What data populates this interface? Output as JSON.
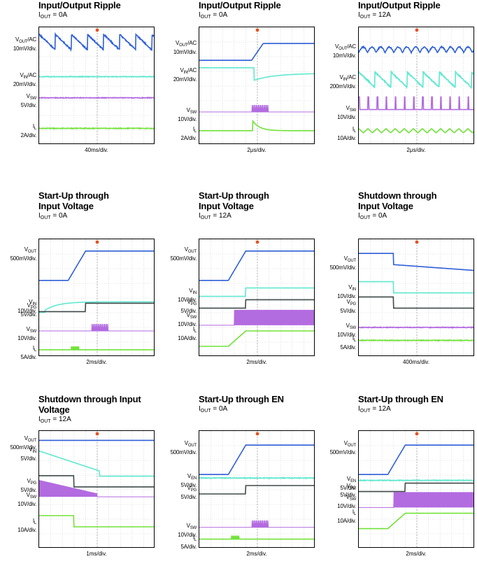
{
  "chart_data": [
    {
      "type": "line",
      "title": "Input/Output Ripple",
      "condition": {
        "prefix": "I",
        "sub": "OUT",
        "value": "= 0A"
      },
      "timebase": "40ms/div.",
      "channels": [
        {
          "sig": "V",
          "sub": "OUT",
          "suffix": "/AC",
          "scale": "10mV/div.",
          "color": "#2f5fd8",
          "waveform": "sawtooth-ripple",
          "level": 0.12
        },
        {
          "sig": "V",
          "sub": "IN",
          "suffix": "/AC",
          "scale": "20mV/div.",
          "color": "#5fe8cf",
          "waveform": "flat",
          "level": 0.42
        },
        {
          "sig": "V",
          "sub": "SW",
          "suffix": "",
          "scale": "5V/div.",
          "color": "#b36be0",
          "waveform": "flat",
          "level": 0.6
        },
        {
          "sig": "I",
          "sub": "L",
          "suffix": "",
          "scale": "2A/div.",
          "color": "#72e23a",
          "waveform": "flat",
          "level": 0.86
        }
      ]
    },
    {
      "type": "line",
      "title": "Input/Output Ripple",
      "condition": {
        "prefix": "I",
        "sub": "OUT",
        "value": "= 0A"
      },
      "timebase": "2μs/div.",
      "channels": [
        {
          "sig": "V",
          "sub": "OUT",
          "suffix": "/AC",
          "scale": "10mV/div.",
          "color": "#2f5fd8",
          "waveform": "step-up",
          "level": 0.15
        },
        {
          "sig": "V",
          "sub": "IN",
          "suffix": "/AC",
          "scale": "20mV/div.",
          "color": "#5fe8cf",
          "waveform": "dip-recover",
          "level": 0.38
        },
        {
          "sig": "V",
          "sub": "SW",
          "suffix": "",
          "scale": "10V/div.",
          "color": "#b36be0",
          "waveform": "burst",
          "level": 0.72
        },
        {
          "sig": "I",
          "sub": "L",
          "suffix": "",
          "scale": "2A/div.",
          "color": "#72e23a",
          "waveform": "pulse-decay",
          "level": 0.88
        }
      ]
    },
    {
      "type": "line",
      "title": "Input/Output Ripple",
      "condition": {
        "prefix": "I",
        "sub": "OUT",
        "value": "= 12A"
      },
      "timebase": "2μs/div.",
      "channels": [
        {
          "sig": "V",
          "sub": "OUT",
          "suffix": "/AC",
          "scale": "10mV/div.",
          "color": "#2f5fd8",
          "waveform": "scallop",
          "level": 0.18
        },
        {
          "sig": "V",
          "sub": "IN",
          "suffix": "/AC",
          "scale": "200mV/div.",
          "color": "#5fe8cf",
          "waveform": "sawtooth-ripple",
          "level": 0.44
        },
        {
          "sig": "V",
          "sub": "SW",
          "suffix": "",
          "scale": "10V/div.",
          "color": "#b36be0",
          "waveform": "spikes",
          "level": 0.7
        },
        {
          "sig": "I",
          "sub": "L",
          "suffix": "",
          "scale": "10A/div.",
          "color": "#72e23a",
          "waveform": "triangle",
          "level": 0.88
        }
      ]
    },
    {
      "type": "line",
      "title": "Start-Up through Input Voltage",
      "condition": {
        "prefix": "I",
        "sub": "OUT",
        "value": "= 0A"
      },
      "timebase": "2ms/div.",
      "channels": [
        {
          "sig": "V",
          "sub": "OUT",
          "suffix": "",
          "scale": "500mV/div.",
          "color": "#2f5fd8",
          "waveform": "ramp-up",
          "level": 0.1
        },
        {
          "sig": "V",
          "sub": "IN",
          "suffix": "",
          "scale": "10V/div.",
          "color": "#5fe8cf",
          "waveform": "rc-rise",
          "level": 0.55
        },
        {
          "sig": "V",
          "sub": "PG",
          "suffix": "",
          "scale": "5V/div.",
          "color": "#3f4a4a",
          "waveform": "step-high",
          "level": 0.58
        },
        {
          "sig": "V",
          "sub": "SW",
          "suffix": "",
          "scale": "10V/div.",
          "color": "#b36be0",
          "waveform": "burst",
          "level": 0.78
        },
        {
          "sig": "I",
          "sub": "L",
          "suffix": "",
          "scale": "5A/div.",
          "color": "#72e23a",
          "waveform": "small-burst",
          "level": 0.94
        }
      ]
    },
    {
      "type": "line",
      "title": "Start-Up through Input Voltage",
      "condition": {
        "prefix": "I",
        "sub": "OUT",
        "value": "= 12A"
      },
      "timebase": "2ms/div.",
      "channels": [
        {
          "sig": "V",
          "sub": "OUT",
          "suffix": "",
          "scale": "500mV/div.",
          "color": "#2f5fd8",
          "waveform": "ramp-up",
          "level": 0.1
        },
        {
          "sig": "V",
          "sub": "IN",
          "suffix": "",
          "scale": "10V/div.",
          "color": "#5fe8cf",
          "waveform": "step-high",
          "level": 0.45
        },
        {
          "sig": "V",
          "sub": "PG",
          "suffix": "",
          "scale": "5V/div.",
          "color": "#3f4a4a",
          "waveform": "step-high",
          "level": 0.55
        },
        {
          "sig": "V",
          "sub": "SW",
          "suffix": "",
          "scale": "10V/div.",
          "color": "#b36be0",
          "waveform": "dense-switch",
          "level": 0.66
        },
        {
          "sig": "I",
          "sub": "L",
          "suffix": "",
          "scale": "10A/div.",
          "color": "#72e23a",
          "waveform": "rise-hold",
          "level": 0.78
        }
      ]
    },
    {
      "type": "line",
      "title": "Shutdown through Input Voltage",
      "condition": {
        "prefix": "I",
        "sub": "OUT",
        "value": "= 0A"
      },
      "timebase": "400ms/div.",
      "channels": [
        {
          "sig": "V",
          "sub": "OUT",
          "suffix": "",
          "scale": "500mV/div.",
          "color": "#2f5fd8",
          "waveform": "step-down",
          "level": 0.18
        },
        {
          "sig": "V",
          "sub": "IN",
          "suffix": "",
          "scale": "10V/div.",
          "color": "#5fe8cf",
          "waveform": "step-down",
          "level": 0.42
        },
        {
          "sig": "V",
          "sub": "PG",
          "suffix": "",
          "scale": "5V/div.",
          "color": "#3f4a4a",
          "waveform": "step-down",
          "level": 0.55
        },
        {
          "sig": "V",
          "sub": "SW",
          "suffix": "",
          "scale": "10V/div.",
          "color": "#b36be0",
          "waveform": "flat",
          "level": 0.75
        },
        {
          "sig": "I",
          "sub": "L",
          "suffix": "",
          "scale": "5A/div.",
          "color": "#72e23a",
          "waveform": "flat",
          "level": 0.86
        }
      ]
    },
    {
      "type": "line",
      "title": "Shutdown through Input Voltage",
      "condition": {
        "prefix": "I",
        "sub": "OUT",
        "value": "= 12A"
      },
      "timebase": "1ms/div.",
      "channels": [
        {
          "sig": "V",
          "sub": "OUT",
          "suffix": "",
          "scale": "500mV/div.",
          "color": "#2f5fd8",
          "waveform": "flat-high",
          "level": 0.08
        },
        {
          "sig": "V",
          "sub": "IN",
          "suffix": "",
          "scale": "5V/div.",
          "color": "#5fe8cf",
          "waveform": "decay-step",
          "level": 0.17
        },
        {
          "sig": "V",
          "sub": "PG",
          "suffix": "",
          "scale": "5V/div.",
          "color": "#3f4a4a",
          "waveform": "step-down",
          "level": 0.44
        },
        {
          "sig": "V",
          "sub": "SW",
          "suffix": "",
          "scale": "10V/div.",
          "color": "#b36be0",
          "waveform": "decaying-switch",
          "level": 0.56
        },
        {
          "sig": "I",
          "sub": "L",
          "suffix": "",
          "scale": "10A/div.",
          "color": "#72e23a",
          "waveform": "step-down",
          "level": 0.78
        }
      ]
    },
    {
      "type": "line",
      "title": "Start-Up through EN",
      "condition": {
        "prefix": "I",
        "sub": "OUT",
        "value": "= 0A"
      },
      "timebase": "2ms/div.",
      "channels": [
        {
          "sig": "V",
          "sub": "OUT",
          "suffix": "",
          "scale": "500mV/div.",
          "color": "#2f5fd8",
          "waveform": "ramp-up",
          "level": 0.12
        },
        {
          "sig": "V",
          "sub": "EN",
          "suffix": "",
          "scale": "5V/div.",
          "color": "#5fe8cf",
          "waveform": "flat",
          "level": 0.4
        },
        {
          "sig": "V",
          "sub": "PG",
          "suffix": "",
          "scale": "5V/div.",
          "color": "#3f4a4a",
          "waveform": "step-high",
          "level": 0.5
        },
        {
          "sig": "V",
          "sub": "SW",
          "suffix": "",
          "scale": "10V/div.",
          "color": "#b36be0",
          "waveform": "burst",
          "level": 0.82
        },
        {
          "sig": "I",
          "sub": "L",
          "suffix": "",
          "scale": "5A/div.",
          "color": "#72e23a",
          "waveform": "small-burst",
          "level": 0.92
        }
      ]
    },
    {
      "type": "line",
      "title": "Start-Up through EN",
      "condition": {
        "prefix": "I",
        "sub": "OUT",
        "value": "= 12A"
      },
      "timebase": "2ms/div.",
      "channels": [
        {
          "sig": "V",
          "sub": "OUT",
          "suffix": "",
          "scale": "500mV/div.",
          "color": "#2f5fd8",
          "waveform": "ramp-up",
          "level": 0.12
        },
        {
          "sig": "V",
          "sub": "EN",
          "suffix": "",
          "scale": "5V/div.",
          "color": "#5fe8cf",
          "waveform": "flat",
          "level": 0.42
        },
        {
          "sig": "V",
          "sub": "PG",
          "suffix": "",
          "scale": "5V/div.",
          "color": "#3f4a4a",
          "waveform": "step-high",
          "level": 0.48
        },
        {
          "sig": "V",
          "sub": "SW",
          "suffix": "",
          "scale": "10V/div.",
          "color": "#b36be0",
          "waveform": "dense-switch",
          "level": 0.58
        },
        {
          "sig": "I",
          "sub": "L",
          "suffix": "",
          "scale": "10A/div.",
          "color": "#72e23a",
          "waveform": "rise-hold",
          "level": 0.7
        }
      ]
    }
  ]
}
